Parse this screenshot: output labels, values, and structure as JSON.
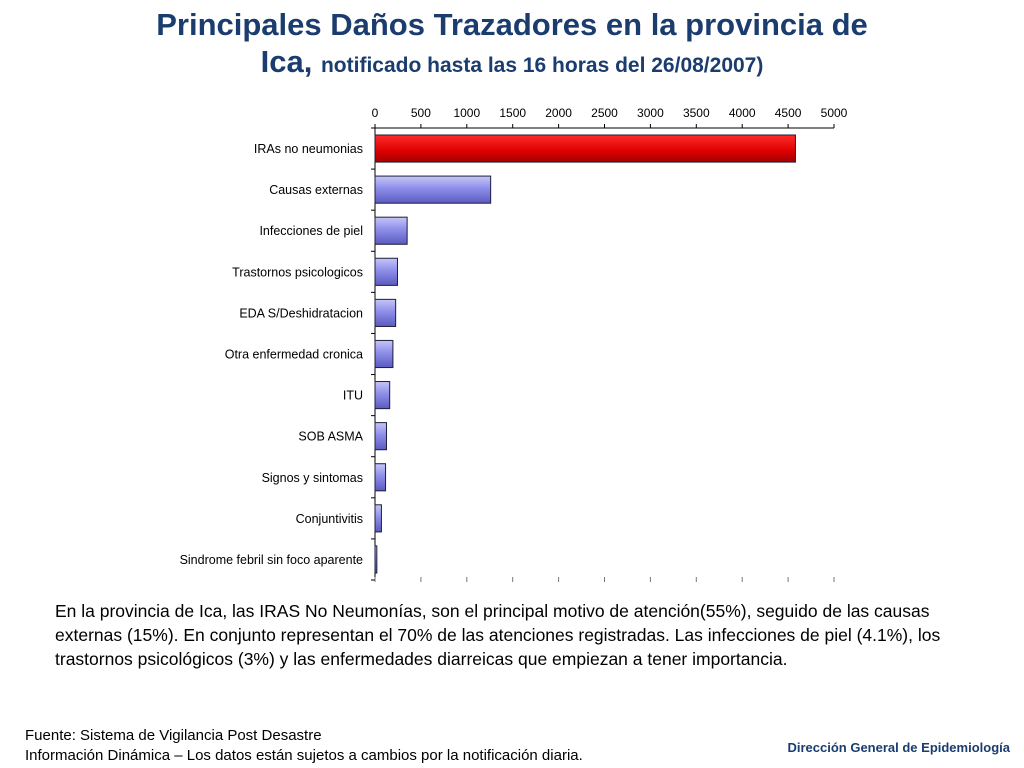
{
  "header": {
    "title_line1": "Principales Daños Trazadores en la provincia de",
    "title_line2": "Ica,",
    "subtitle": "notificado hasta las 16 horas del 26/08/2007)"
  },
  "chart_data": {
    "type": "bar",
    "orientation": "horizontal",
    "title": "",
    "xlabel": "",
    "ylabel": "",
    "xlim": [
      0,
      5000
    ],
    "x_ticks": [
      "0",
      "500",
      "1000",
      "1500",
      "2000",
      "2500",
      "3000",
      "3500",
      "4000",
      "4500",
      "5000"
    ],
    "x_axis_position": "top",
    "grid": false,
    "categories": [
      "IRAs no neumonias",
      "Causas externas",
      "Infecciones de piel",
      "Trastornos psicologicos",
      "EDA S/Deshidratacion",
      "Otra enfermedad cronica",
      "ITU",
      "SOB ASMA",
      "Signos y sintomas",
      "Conjuntivitis",
      "Sindrome febril sin foco aparente"
    ],
    "values": [
      4580,
      1260,
      350,
      245,
      225,
      195,
      160,
      125,
      115,
      70,
      20
    ],
    "colors": [
      "#e00000",
      "#8c8ce6",
      "#8c8ce6",
      "#8c8ce6",
      "#8c8ce6",
      "#8c8ce6",
      "#8c8ce6",
      "#8c8ce6",
      "#8c8ce6",
      "#8c8ce6",
      "#8c8ce6"
    ]
  },
  "description": "En la provincia de Ica, las IRAS No Neumonías, son el principal motivo de atención(55%), seguido de las causas externas (15%). En conjunto representan el 70% de las atenciones registradas. Las infecciones de piel (4.1%), los trastornos psicológicos (3%) y las enfermedades diarreicas que empiezan a tener importancia.",
  "footer": {
    "source_line1": "Fuente: Sistema de Vigilancia Post Desastre",
    "source_line2": "Información Dinámica – Los datos están sujetos a cambios por la notificación diaria.",
    "org": "Dirección General de Epidemiología"
  }
}
